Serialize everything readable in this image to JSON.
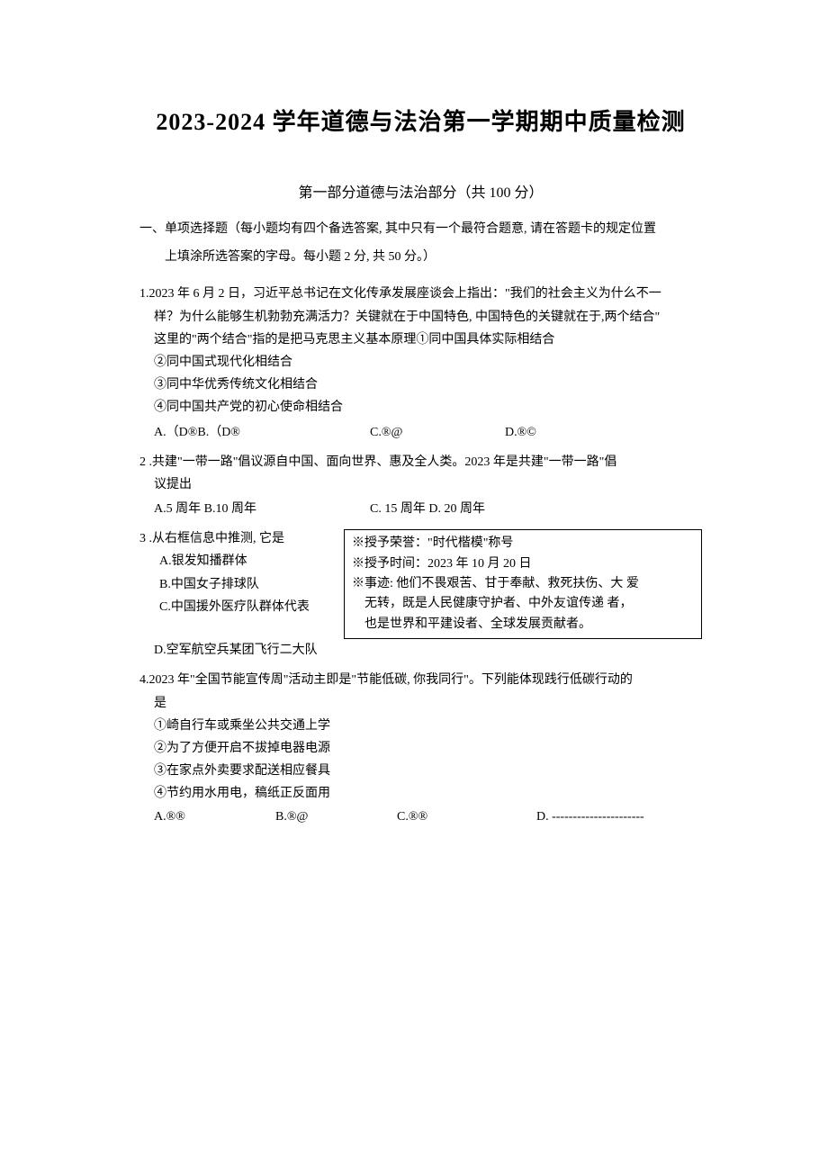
{
  "title": "2023-2024 学年道德与法治第一学期期中质量检测",
  "subtitle": "第一部分道德与法治部分（共 100 分）",
  "section_header_line1": "一、单项选择题（每小题均有四个备选答案, 其中只有一个最符合题意, 请在答题卡的规定位置",
  "section_header_line2": "上填涂所选答案的字母。每小题 2 分, 共 50 分。）",
  "q1": {
    "stem1": "1.2023 年 6 月 2 日，习近平总书记在文化传承发展座谈会上指出：\"我们的社会主义为什么不一",
    "stem2": "样？为什么能够生机勃勃充满活力？关键就在于中国特色, 中国特色的关键就在于,两个结合\"",
    "stem3": "这里的\"两个结合\"指的是把马克思主义基本原理①同中国具体实际相结合",
    "item2": "②同中国式现代化相结合",
    "item3": "③同中华优秀传统文化相结合",
    "item4": "④同中国共产党的初心使命相结合",
    "optA": "A.（D®B.（D®",
    "optC": "C.®@",
    "optD": "D.®©"
  },
  "q2": {
    "stem1": "2 .共建\"一带一路\"倡议源自中国、面向世界、惠及全人类。2023 年是共建\"一带一路\"倡",
    "stem2": "议提出",
    "optA": "A.5 周年 B.10 周年",
    "optC": "C. 15 周年  D. 20 周年"
  },
  "q3": {
    "stem": "3   .从右框信息中推测, 它是",
    "optA": "A.银发知播群体",
    "optB": "B.中国女子排球队",
    "optC": "C.中国援外医疗队群体代表",
    "optD": "D.空军航空兵某团飞行二大队",
    "box_line1": "※授予荣誉：\"时代楷模\"称号",
    "box_line2": "※授予时间：2023 年 10 月 20 日",
    "box_line3": "※事迹: 他们不畏艰苦、甘于奉献、救死扶伤、大  爱",
    "box_line4": "无转，既是人民健康守护者、中外友谊传递  者，",
    "box_line5": "也是世界和平建设者、全球发展贡献者。"
  },
  "q4": {
    "stem1": "4.2023 年\"全国节能宣传周\"活动主即是\"节能低碳, 你我同行\"。下列能体现践行低碳行动的",
    "stem2": "是",
    "item1": "①崎自行车或乘坐公共交通上学",
    "item2": "②为了方便开启不拔掉电器电源",
    "item3": "③在家点外卖要求配送相应餐具",
    "item4": "④节约用水用电，稿纸正反面用",
    "optA": "A.®®",
    "optB": "B.®@",
    "optC": "C.®®",
    "optD": "D. ----------------------"
  },
  "colors": {
    "background": "#ffffff",
    "text": "#000000",
    "border": "#000000"
  },
  "fonts": {
    "title_size": 26,
    "subtitle_size": 16,
    "body_size": 14,
    "family": "SimSun"
  }
}
